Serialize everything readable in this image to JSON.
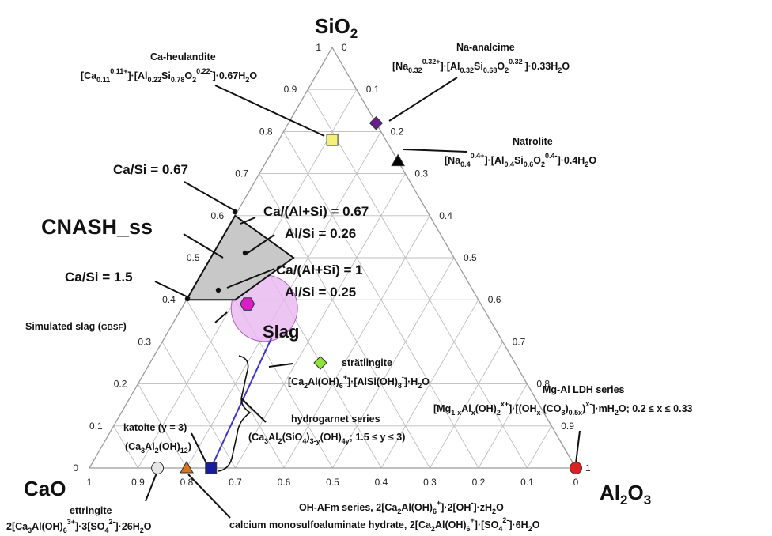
{
  "vertices": {
    "top": {
      "label": "SiO",
      "sub": "2"
    },
    "left": {
      "label": "CaO"
    },
    "right": {
      "label": "Al",
      "sub1": "2",
      "mid": "O",
      "sub2": "3"
    }
  },
  "ticks": {
    "left_edge": [
      "1",
      "0.9",
      "0.8",
      "0.7",
      "0.6",
      "0.5",
      "0.4",
      "0.3",
      "0.2",
      "0.1",
      "0"
    ],
    "right_edge": [
      "0",
      "0.1",
      "0.2",
      "0.3",
      "0.4",
      "0.5",
      "0.6",
      "0.7",
      "0.8",
      "0.9",
      "1"
    ],
    "bottom_edge": [
      "1",
      "0.9",
      "0.8",
      "0.7",
      "0.6",
      "0.5",
      "0.4",
      "0.3",
      "0.2",
      "0.1",
      "0"
    ]
  },
  "labels": {
    "ca_heulandite_name": "Ca-heulandite",
    "ca_heulandite_formula": "[Ca0.110.11+]·[Al0.22Si0.78O20.22-]·0.67H2O",
    "na_analcime_name": "Na-analcime",
    "na_analcime_formula": "[Na0.320.32+]·[Al0.32Si0.68O20.32-]·0.33H2O",
    "natrolite_name": "Natrolite",
    "natrolite_formula": "[Na0.40.4+]·[Al0.4Si0.6O20.4-]·0.4H2O",
    "ca_si_067": "Ca/Si = 0.67",
    "ca_si_15": "Ca/Si = 1.5",
    "cnash": "CNASH_ss",
    "ca_alsi_067": "Ca/(Al+Si) = 0.67",
    "al_si_026": "Al/Si = 0.26",
    "ca_alsi_1": "Ca/(Al+Si) = 1",
    "al_si_025": "Al/Si = 0.25",
    "simulated_slag": "Simulated slag (GBSF)",
    "slag": "Slag",
    "stratlingite_name": "strätlingite",
    "stratlingite_formula": "[Ca2Al(OH)6+]·[AlSi(OH)8-]·H2O",
    "hydrogarnet_name": "hydrogarnet series",
    "hydrogarnet_formula": "(Ca3Al2(SiO4)3-y(OH)4y; 1.5 ≤ y ≤ 3)",
    "katoite_name": "katoite (y = 3)",
    "katoite_formula": "(Ca3Al2(OH)12)",
    "mgal_ldh_name": "Mg-Al LDH series",
    "mgal_ldh_formula": "[Mg1-xAlx(OH)2x+]·[(OHx-(CO3)0.5x)x-]·mH2O; 0.2 ≤ x ≤ 0.33",
    "ettringite_name": "ettringite",
    "ettringite_formula": "2[Ca3Al(OH)63+]·3[SO42-]·26H2O",
    "ohafm_formula": "OH-AFm series, 2[Ca2Al(OH)6+]·2[OH-]·zH2O",
    "monosulfo_formula": "calcium monosulfoaluminate hydrate, 2[Ca2Al(OH)6+]·[SO42-]·6H2O"
  },
  "points": [
    {
      "name": "Ca-heulandite",
      "CaO": 0.11,
      "SiO2": 0.78,
      "Al2O3": 0.11,
      "marker": "square",
      "color": "#f5f07a"
    },
    {
      "name": "Na-analcime",
      "CaO": 0.0,
      "SiO2": 0.82,
      "Al2O3": 0.18,
      "marker": "diamond",
      "color": "#6b1f8c"
    },
    {
      "name": "Natrolite",
      "CaO": 0.0,
      "SiO2": 0.73,
      "Al2O3": 0.27,
      "marker": "triangle",
      "color": "#000000"
    },
    {
      "name": "Simulated slag",
      "CaO": 0.48,
      "SiO2": 0.39,
      "Al2O3": 0.13,
      "marker": "hexagon",
      "color": "#d61ec9"
    },
    {
      "name": "strätlingite",
      "CaO": 0.4,
      "SiO2": 0.25,
      "Al2O3": 0.35,
      "marker": "diamond",
      "color": "#8ee23a"
    },
    {
      "name": "katoite",
      "CaO": 0.75,
      "SiO2": 0.0,
      "Al2O3": 0.25,
      "marker": "square",
      "color": "#1a1aa0"
    },
    {
      "name": "OH-AFm / monosulfoaluminate",
      "CaO": 0.8,
      "SiO2": 0.0,
      "Al2O3": 0.2,
      "marker": "triangle",
      "color": "#d8731e"
    },
    {
      "name": "ettringite",
      "CaO": 0.86,
      "SiO2": 0.0,
      "Al2O3": 0.14,
      "marker": "circle",
      "color": "#e6e6e6"
    },
    {
      "name": "Mg-Al LDH",
      "CaO": 0.0,
      "SiO2": 0.0,
      "Al2O3": 1.0,
      "marker": "circle",
      "color": "#e02020"
    }
  ],
  "cnash_region": [
    {
      "CaO": 0.4,
      "SiO2": 0.6,
      "Al2O3": 0.0
    },
    {
      "CaO": 0.33,
      "SiO2": 0.5,
      "Al2O3": 0.17
    },
    {
      "CaO": 0.5,
      "SiO2": 0.4,
      "Al2O3": 0.1
    },
    {
      "CaO": 0.6,
      "SiO2": 0.4,
      "Al2O3": 0.0
    }
  ],
  "hydrogarnet_line": [
    {
      "CaO": 0.75,
      "SiO2": 0.0,
      "Al2O3": 0.25
    },
    {
      "CaO": 0.47,
      "SiO2": 0.31,
      "Al2O3": 0.22
    }
  ],
  "slag_region": {
    "center": {
      "CaO": 0.45,
      "SiO2": 0.38,
      "Al2O3": 0.17
    },
    "color": "#e8b6f0"
  },
  "colors": {
    "grid": "#bdbdbd",
    "cnash_fill": "#c8c8c8",
    "slag_fill": "#e9b7ef",
    "hydrogarnet_line": "#3b35c9"
  }
}
